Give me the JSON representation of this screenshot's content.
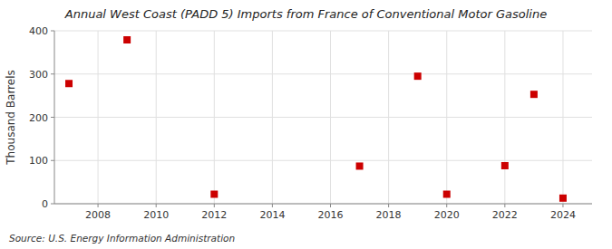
{
  "chart_data": {
    "type": "scatter",
    "title": "Annual West Coast (PADD 5) Imports from France of Conventional Motor Gasoline",
    "ylabel": "Thousand Barrels",
    "annotations": [
      "Source: U.S. Energy Information Administration"
    ],
    "x": [
      2007,
      2009,
      2012,
      2017,
      2019,
      2020,
      2022,
      2023,
      2024
    ],
    "values": [
      278,
      379,
      22,
      87,
      295,
      22,
      88,
      253,
      13
    ],
    "color": "#cc0000",
    "marker": "square",
    "xlim": [
      2006.5,
      2025
    ],
    "xticks": [
      2008,
      2010,
      2012,
      2014,
      2016,
      2018,
      2020,
      2022,
      2024
    ],
    "ylim": [
      0,
      400
    ],
    "yticks": [
      0,
      100,
      200,
      300,
      400
    ],
    "grid": true
  }
}
